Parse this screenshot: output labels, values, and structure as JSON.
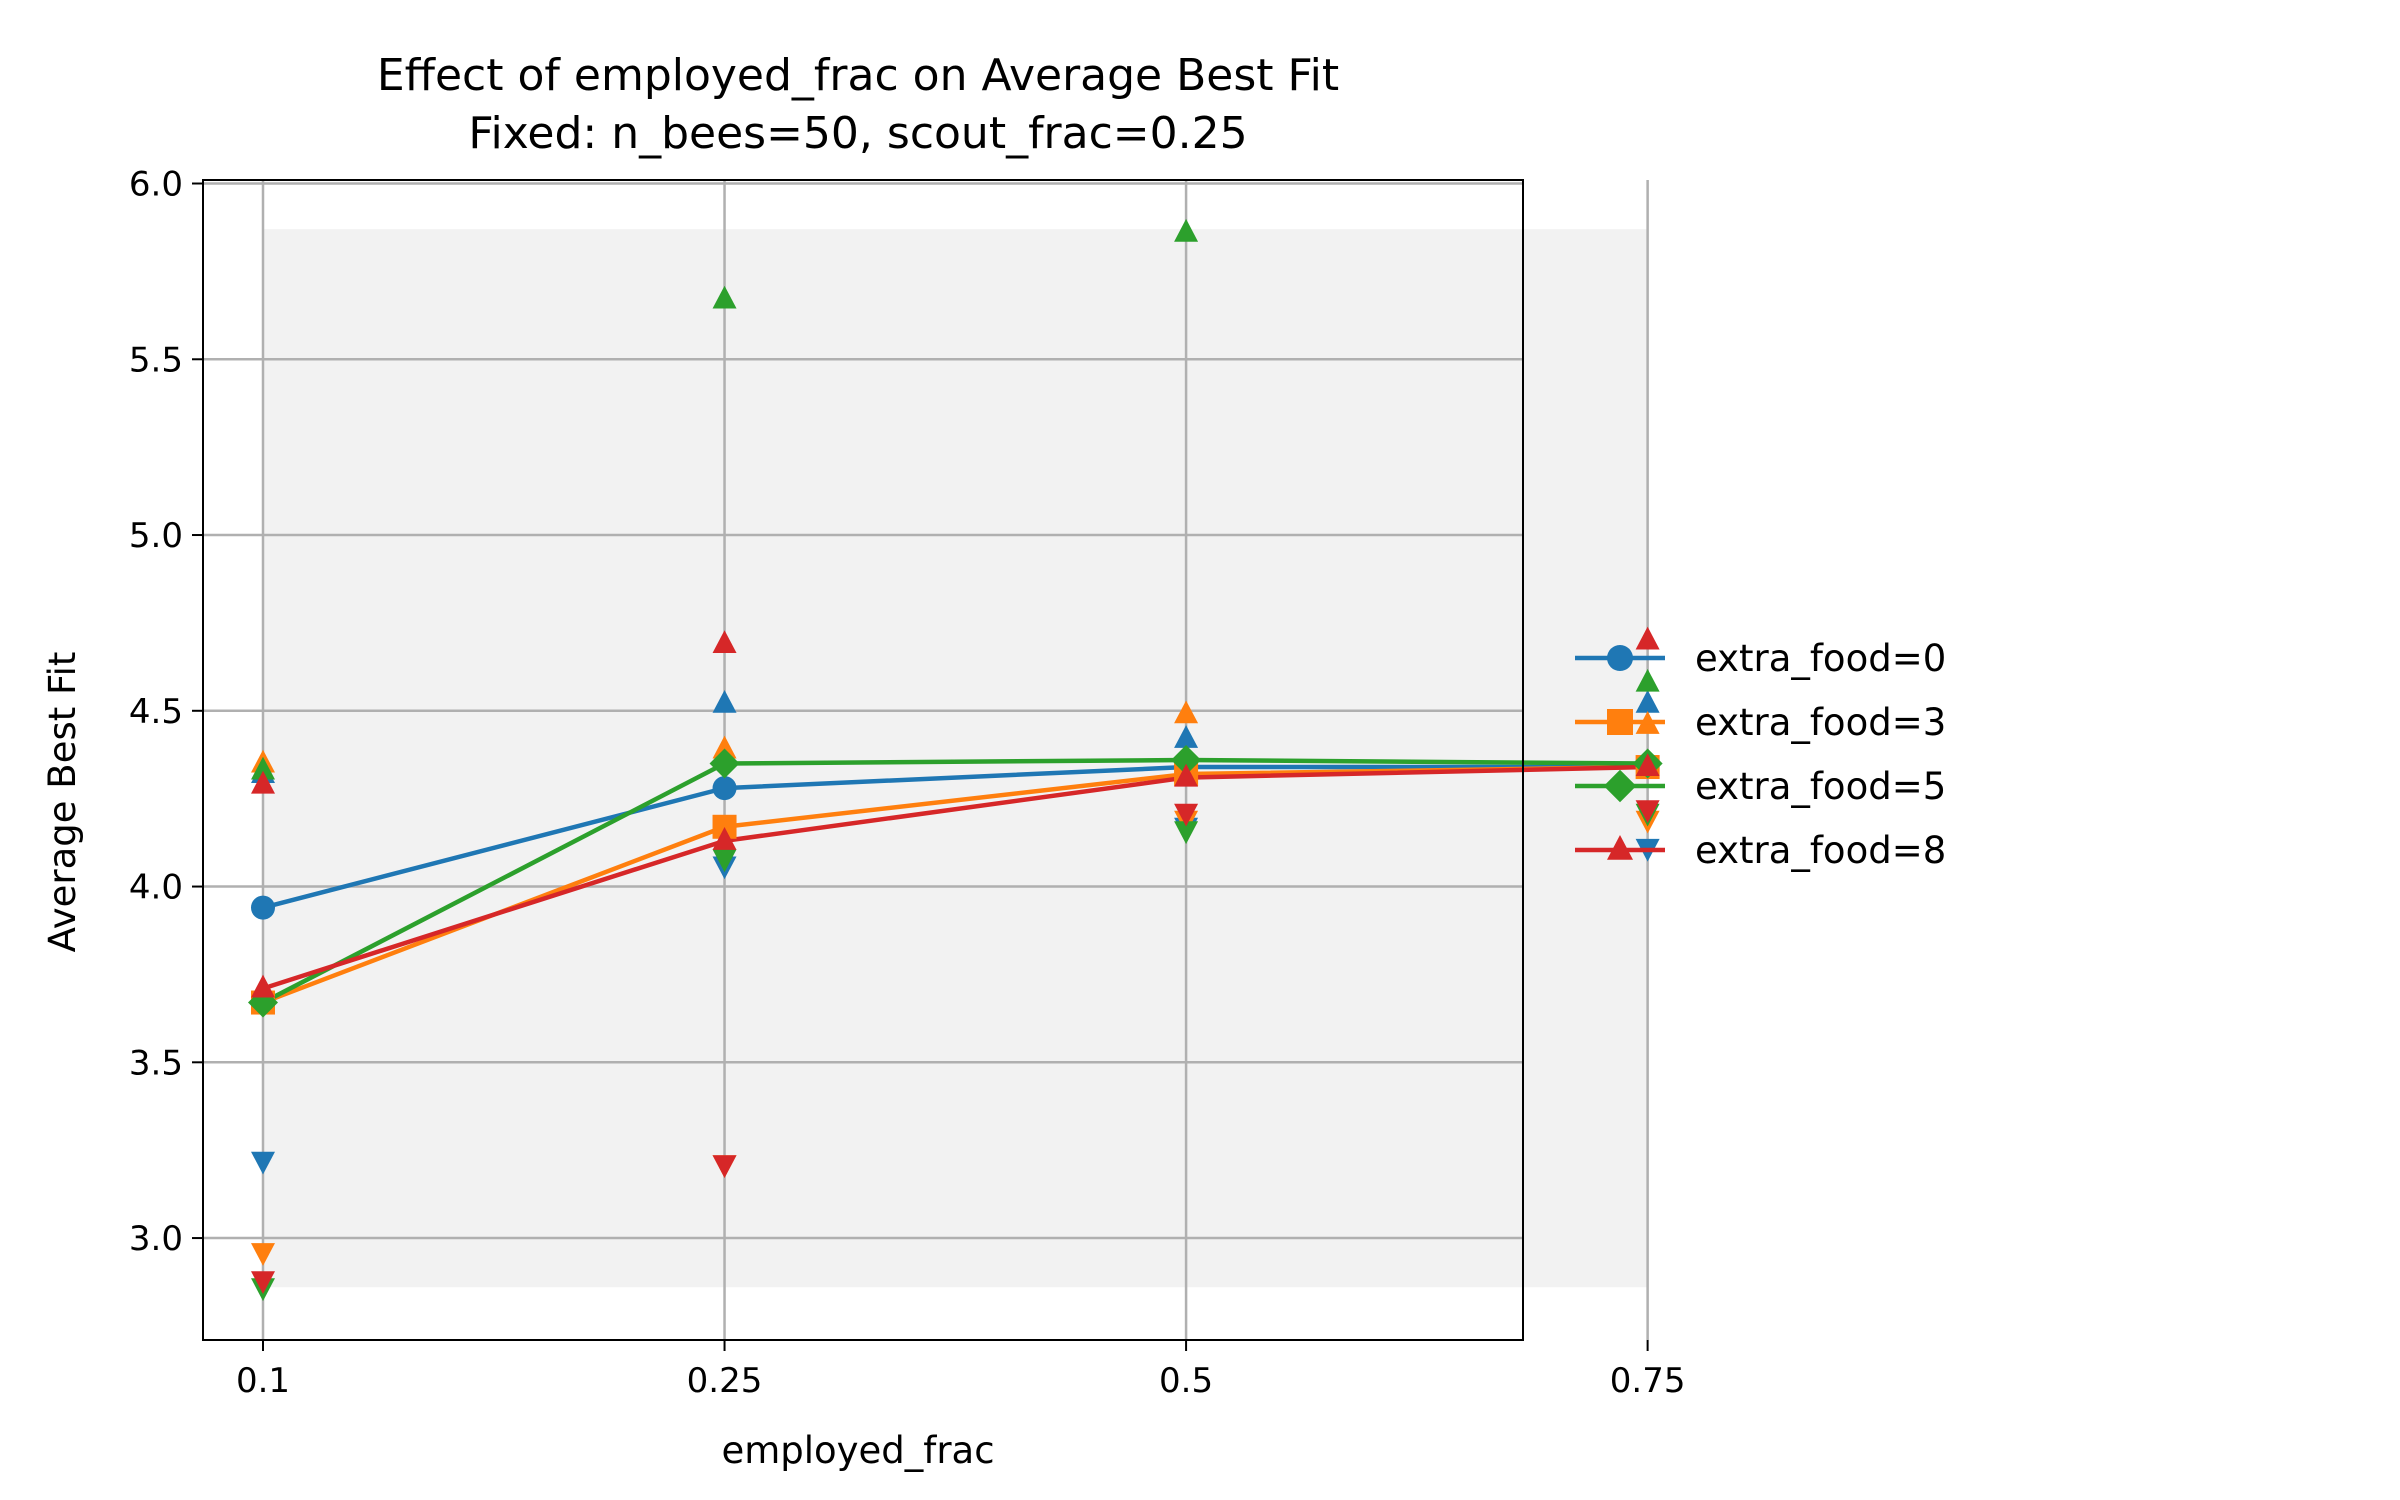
{
  "chart_data": {
    "type": "line",
    "title": "Effect of employed_frac on Average Best Fit",
    "subtitle": "Fixed: n_bees=50, scout_frac=0.25",
    "xlabel": "employed_frac",
    "ylabel": "Average Best Fit",
    "categories": [
      "0.1",
      "0.25",
      "0.5",
      "0.75"
    ],
    "xlim": [
      -0.13,
      2.73
    ],
    "ylim": [
      2.71,
      6.01
    ],
    "yticks": [
      "3.0",
      "3.5",
      "4.0",
      "4.5",
      "5.0",
      "5.5",
      "6.0"
    ],
    "grid": true,
    "legend_position": "right",
    "band": {
      "y_min": 2.86,
      "y_max": 5.87,
      "color": "#f2f2f2"
    },
    "series": [
      {
        "name": "extra_food=0",
        "color": "#1f77b4",
        "marker": "circle",
        "values": [
          3.94,
          4.28,
          4.34,
          4.34
        ],
        "max": [
          4.32,
          4.52,
          4.42,
          4.52
        ],
        "min": [
          3.22,
          4.06,
          4.17,
          4.11
        ]
      },
      {
        "name": "extra_food=3",
        "color": "#ff7f0e",
        "marker": "square",
        "values": [
          3.67,
          4.17,
          4.32,
          4.34
        ],
        "max": [
          4.35,
          4.39,
          4.49,
          4.46
        ],
        "min": [
          2.96,
          3.21,
          4.19,
          4.19
        ]
      },
      {
        "name": "extra_food=5",
        "color": "#2ca02c",
        "marker": "diamond",
        "values": [
          3.67,
          4.35,
          4.36,
          4.35
        ],
        "max": [
          4.33,
          5.67,
          5.86,
          4.58
        ],
        "min": [
          2.86,
          4.08,
          4.16,
          4.21
        ]
      },
      {
        "name": "extra_food=8",
        "color": "#d62728",
        "marker": "triangle",
        "values": [
          3.71,
          4.13,
          4.31,
          4.34
        ],
        "max": [
          4.29,
          4.69,
          4.35,
          4.7
        ],
        "min": [
          2.88,
          3.21,
          4.21,
          4.22
        ]
      }
    ]
  }
}
